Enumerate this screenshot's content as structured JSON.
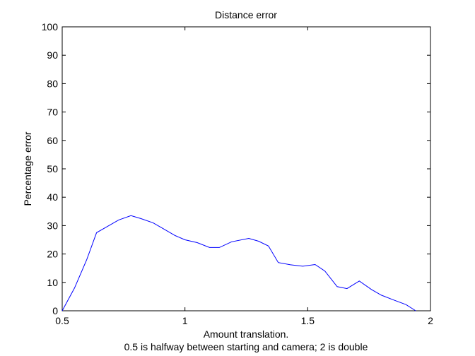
{
  "chart_data": {
    "type": "line",
    "title": "Distance error",
    "xlabel_lines": [
      "Amount translation.",
      "0.5 is halfway between starting and camera; 2 is double"
    ],
    "ylabel": "Percentage error",
    "xlim": [
      0.5,
      2
    ],
    "ylim": [
      0,
      100
    ],
    "xticks": [
      0.5,
      1,
      1.5,
      2
    ],
    "xtick_labels": [
      "0.5",
      "1",
      "1.5",
      "2"
    ],
    "yticks": [
      0,
      10,
      20,
      30,
      40,
      50,
      60,
      70,
      80,
      90,
      100
    ],
    "ytick_labels": [
      "0",
      "10",
      "20",
      "30",
      "40",
      "50",
      "60",
      "70",
      "80",
      "90",
      "100"
    ],
    "grid": false,
    "series": [
      {
        "color": "#0000ff",
        "x": [
          0.5,
          0.55,
          0.6,
          0.64,
          0.68,
          0.73,
          0.78,
          0.82,
          0.87,
          0.91,
          0.96,
          1.0,
          1.05,
          1.1,
          1.14,
          1.19,
          1.26,
          1.3,
          1.34,
          1.38,
          1.43,
          1.48,
          1.53,
          1.57,
          1.62,
          1.66,
          1.71,
          1.76,
          1.8,
          1.85,
          1.9,
          1.94
        ],
        "y": [
          0,
          8,
          18,
          27.5,
          29.5,
          32,
          33.5,
          32.5,
          31,
          29,
          26.5,
          25,
          24,
          22.3,
          22.3,
          24.3,
          25.5,
          24.5,
          22.8,
          17,
          16.2,
          15.7,
          16.3,
          14,
          8.5,
          7.8,
          10.5,
          7.5,
          5.5,
          3.8,
          2.2,
          0
        ]
      }
    ]
  }
}
